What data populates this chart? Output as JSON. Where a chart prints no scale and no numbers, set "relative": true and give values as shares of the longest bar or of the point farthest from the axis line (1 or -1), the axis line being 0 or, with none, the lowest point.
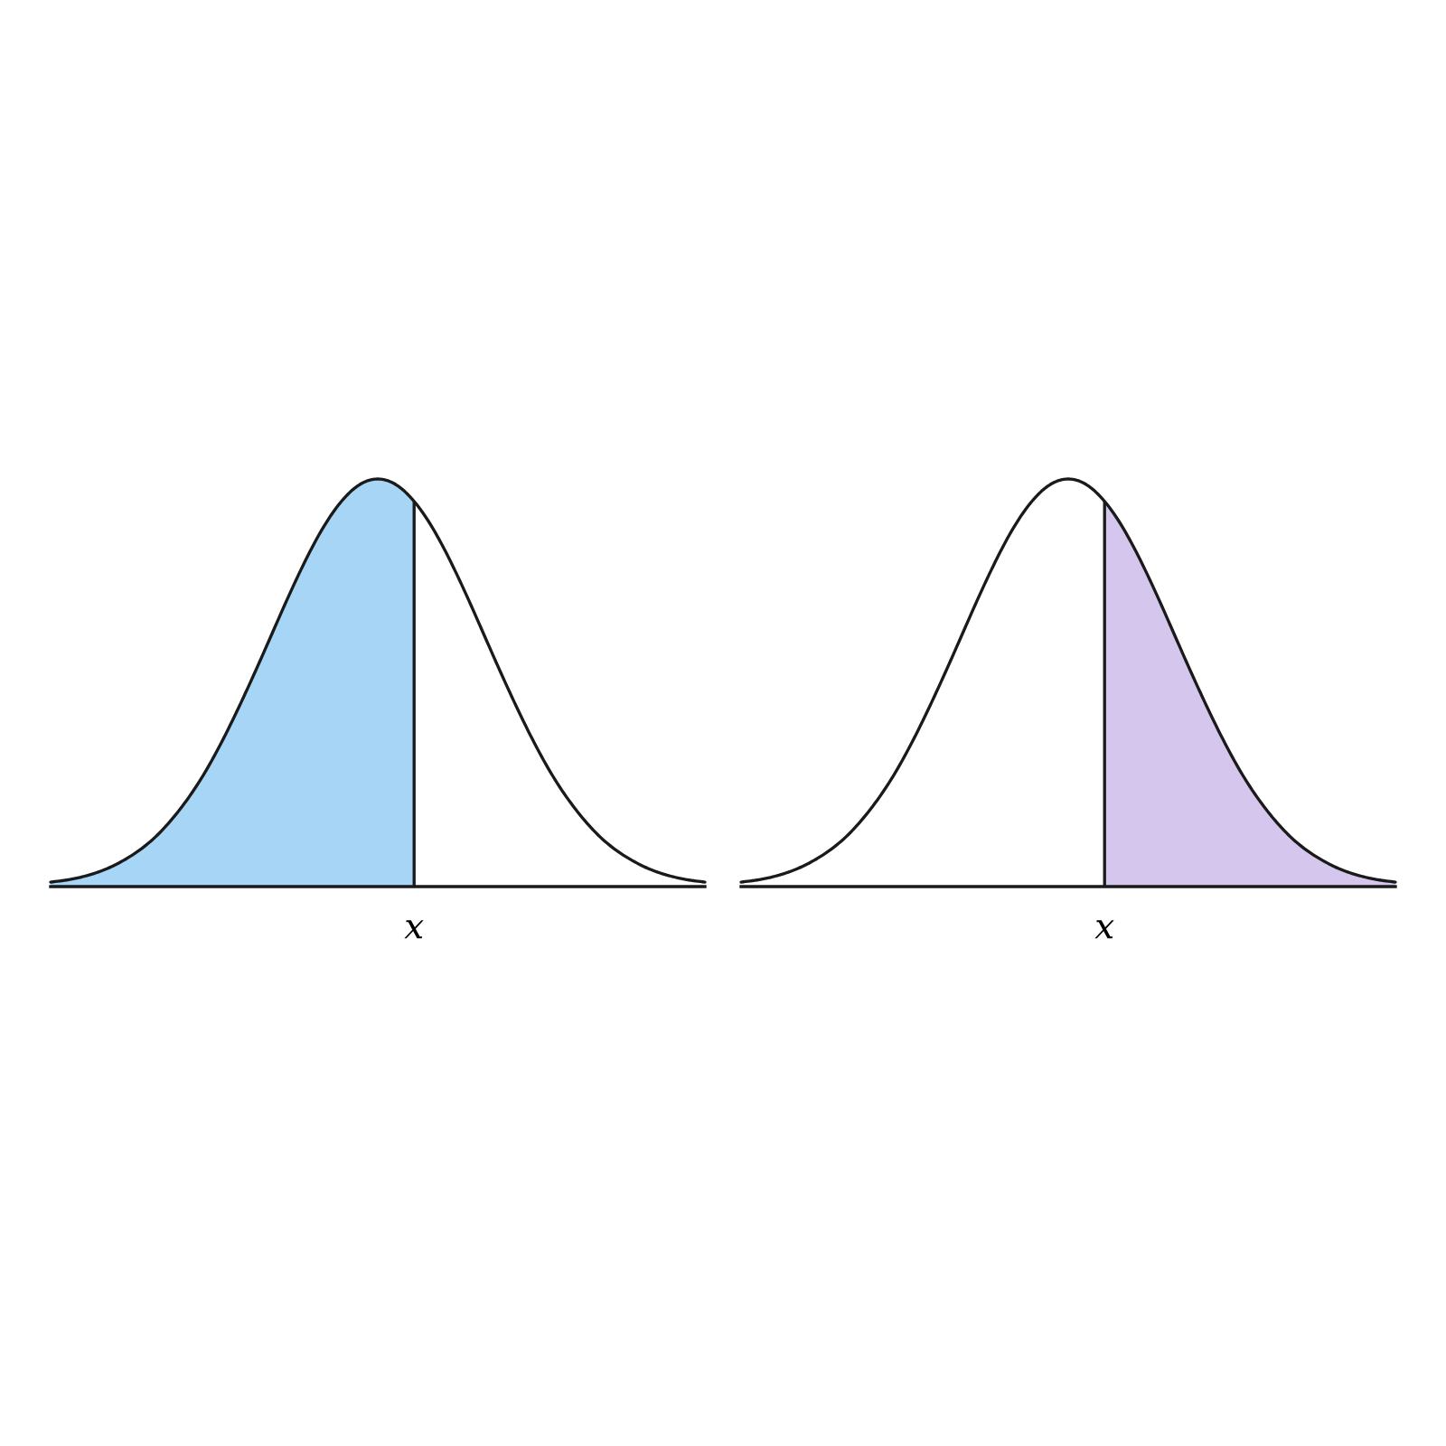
{
  "chart_data": [
    {
      "type": "line",
      "relative": true,
      "categories": [
        null,
        null,
        null,
        null,
        null,
        null,
        null,
        null,
        null,
        null,
        null,
        null,
        null,
        null,
        null,
        null,
        null,
        null,
        null,
        null,
        null,
        null,
        null,
        null,
        null,
        null,
        null,
        null,
        null,
        null,
        null,
        null,
        null,
        null,
        null,
        null,
        null
      ],
      "annotations": [
        "x"
      ],
      "series": [
        {
          "color": "#1a1a1a",
          "values": [
            0.011,
            0.017,
            0.027,
            0.042,
            0.064,
            0.093,
            0.132,
            0.183,
            0.245,
            0.32,
            0.407,
            0.502,
            0.602,
            0.703,
            0.798,
            0.881,
            0.945,
            0.986,
            1.0,
            0.986,
            0.945,
            0.881,
            0.798,
            0.703,
            0.602,
            0.502,
            0.407,
            0.32,
            0.245,
            0.183,
            0.132,
            0.093,
            0.064,
            0.042,
            0.027,
            0.017,
            0.011
          ]
        },
        {
          "type": "area",
          "color": "#a6d5f5",
          "values": [
            0.011,
            0.017,
            0.027,
            0.042,
            0.064,
            0.093,
            0.132,
            0.183,
            0.245,
            0.32,
            0.407,
            0.502,
            0.602,
            0.703,
            0.798,
            0.881,
            0.945,
            0.986,
            1.0,
            0.986,
            0.945,
            null,
            null,
            null,
            null,
            null,
            null,
            null,
            null,
            null,
            null,
            null,
            null,
            null,
            null,
            null,
            null
          ]
        }
      ]
    },
    {
      "type": "line",
      "relative": true,
      "categories": [
        null,
        null,
        null,
        null,
        null,
        null,
        null,
        null,
        null,
        null,
        null,
        null,
        null,
        null,
        null,
        null,
        null,
        null,
        null,
        null,
        null,
        null,
        null,
        null,
        null,
        null,
        null,
        null,
        null,
        null,
        null,
        null,
        null,
        null,
        null,
        null,
        null
      ],
      "annotations": [
        "x"
      ],
      "series": [
        {
          "color": "#1a1a1a",
          "values": [
            0.011,
            0.017,
            0.027,
            0.042,
            0.064,
            0.093,
            0.132,
            0.183,
            0.245,
            0.32,
            0.407,
            0.502,
            0.602,
            0.703,
            0.798,
            0.881,
            0.945,
            0.986,
            1.0,
            0.986,
            0.945,
            0.881,
            0.798,
            0.703,
            0.602,
            0.502,
            0.407,
            0.32,
            0.245,
            0.183,
            0.132,
            0.093,
            0.064,
            0.042,
            0.027,
            0.017,
            0.011
          ]
        },
        {
          "type": "area",
          "color": "#d5c6ee",
          "values": [
            null,
            null,
            null,
            null,
            null,
            null,
            null,
            null,
            null,
            null,
            null,
            null,
            null,
            null,
            null,
            null,
            null,
            null,
            null,
            null,
            0.945,
            0.881,
            0.798,
            0.703,
            0.602,
            0.502,
            0.407,
            0.32,
            0.245,
            0.183,
            0.132,
            0.093,
            0.064,
            0.042,
            0.027,
            0.017,
            0.011
          ]
        }
      ]
    }
  ]
}
